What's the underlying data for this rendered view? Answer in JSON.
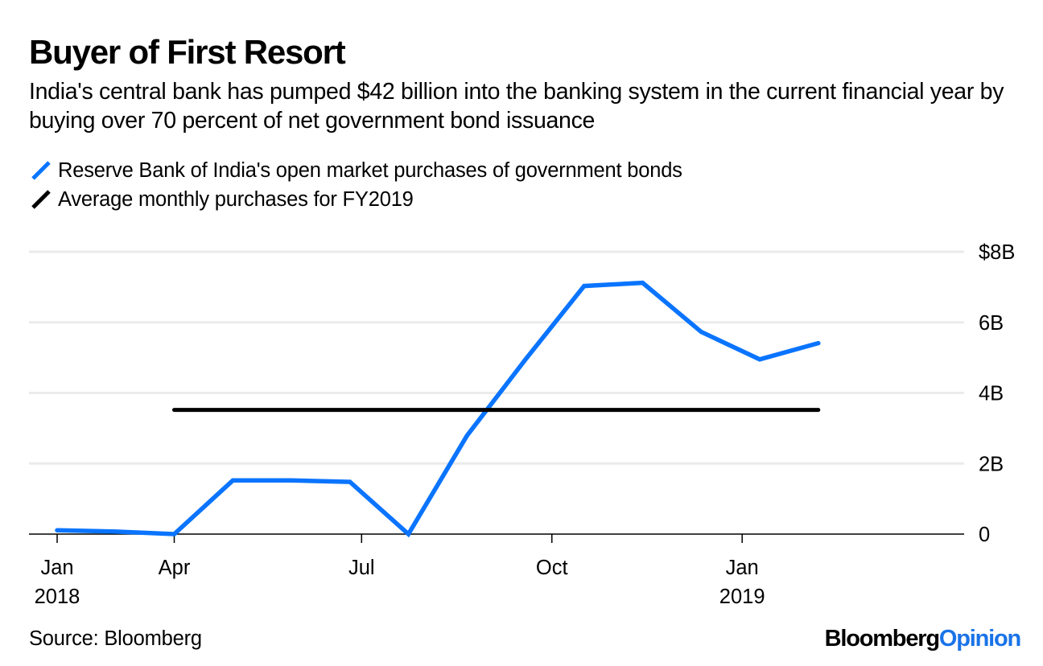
{
  "header": {
    "title": "Buyer of First Resort",
    "subtitle": "India's central bank has pumped $42 billion into the banking system in the current financial year by buying over 70 percent of net government bond issuance"
  },
  "legend": [
    {
      "label": "Reserve Bank of India's open market purchases of government bonds",
      "color": "#0a74ff",
      "icon": "blue-slash-icon"
    },
    {
      "label": "Average monthly purchases for FY2019",
      "color": "#000000",
      "icon": "black-slash-icon"
    }
  ],
  "footer": {
    "source": "Source: Bloomberg",
    "logo_part1": "Bloomberg",
    "logo_part2": "Opinion"
  },
  "chart_data": {
    "type": "line",
    "title": "Buyer of First Resort",
    "xlabel": "",
    "ylabel": "",
    "ylim": [
      0,
      8
    ],
    "y_ticks": [
      {
        "value": 8,
        "label": "$8B"
      },
      {
        "value": 6,
        "label": "6B"
      },
      {
        "value": 4,
        "label": "4B"
      },
      {
        "value": 2,
        "label": "2B"
      },
      {
        "value": 0,
        "label": "0"
      }
    ],
    "x_range_months": [
      -0.05,
      15.8
    ],
    "x_ticks": [
      {
        "month": 0,
        "label": "Jan",
        "sublabel": "2018"
      },
      {
        "month": 2,
        "label": "Apr",
        "sublabel": ""
      },
      {
        "month": 5.2,
        "label": "Jul",
        "sublabel": ""
      },
      {
        "month": 8.45,
        "label": "Oct",
        "sublabel": ""
      },
      {
        "month": 11.7,
        "label": "Jan",
        "sublabel": "2019"
      }
    ],
    "grid": true,
    "legend_position": "top-left",
    "series": [
      {
        "name": "Reserve Bank of India's open market purchases of government bonds",
        "color": "#0a74ff",
        "x": [
          0,
          1,
          2,
          3,
          4,
          5,
          6,
          7,
          8,
          9,
          10,
          11,
          12,
          13
        ],
        "values": [
          0.11,
          0.07,
          0.0,
          1.52,
          1.52,
          1.48,
          0.0,
          2.79,
          4.95,
          7.03,
          7.12,
          5.73,
          4.95,
          5.41
        ]
      },
      {
        "name": "Average monthly purchases for FY2019",
        "color": "#000000",
        "x": [
          2,
          13
        ],
        "values": [
          3.52,
          3.52
        ]
      }
    ]
  }
}
